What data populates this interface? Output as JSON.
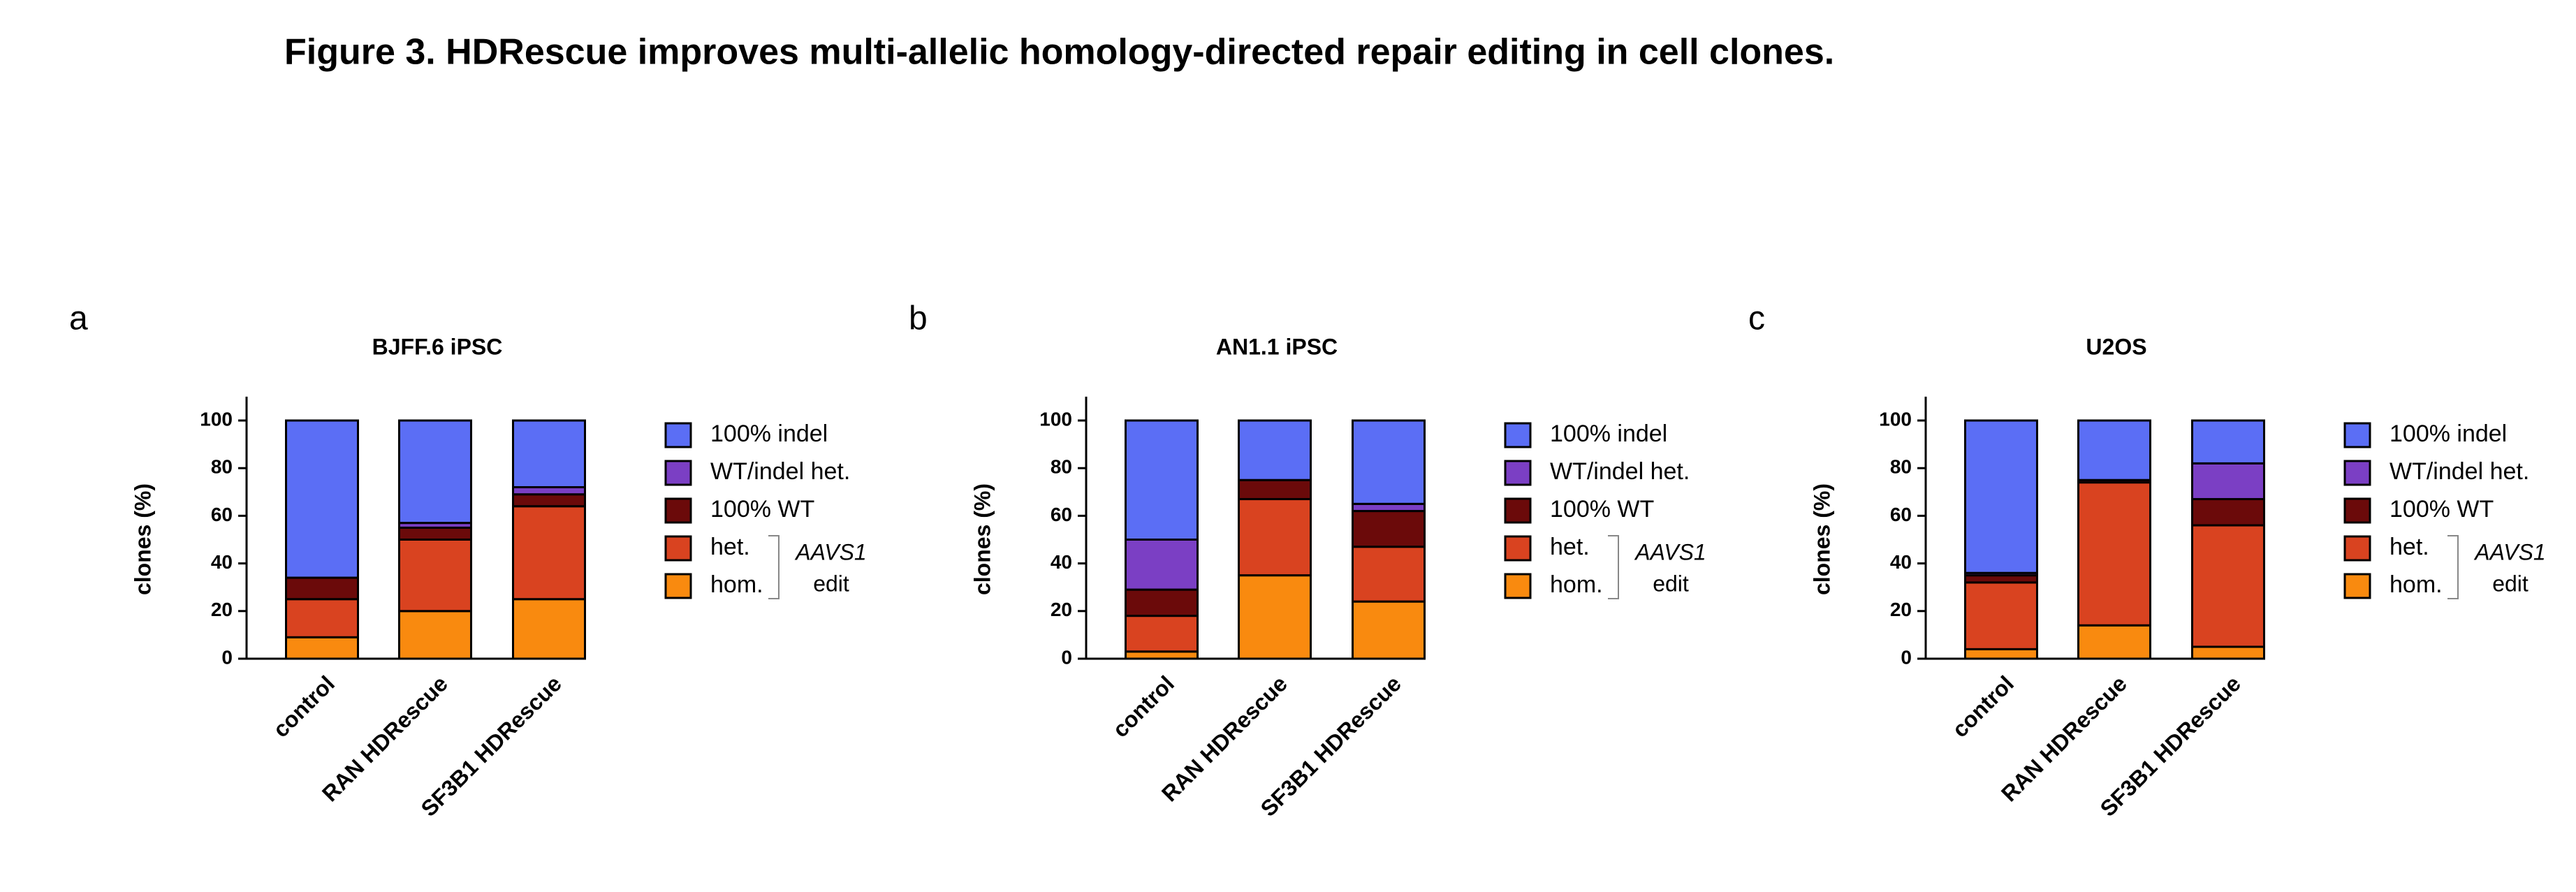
{
  "figure_title": "Figure 3. HDRescue improves multi-allelic homology-directed repair editing in cell clones.",
  "chart_data": [
    {
      "type": "stacked-bar",
      "panel": "a",
      "title": "BJFF.6 iPSC",
      "y_label": "clones (%)",
      "categories": [
        "control",
        "RAN HDRescue",
        "SF3B1 HDRescue"
      ],
      "series": [
        {
          "name": "100% indel",
          "color": "#5b6ef5",
          "values": [
            66,
            43,
            28
          ]
        },
        {
          "name": "WT/indel het.",
          "color": "#7b3fc4",
          "values": [
            0,
            2,
            3
          ]
        },
        {
          "name": "100% WT",
          "color": "#6b0a0a",
          "values": [
            9,
            5,
            5
          ]
        },
        {
          "name": "het.",
          "color": "#d94320",
          "values": [
            16,
            30,
            39
          ]
        },
        {
          "name": "hom.",
          "color": "#f98a0f",
          "values": [
            9,
            20,
            25
          ]
        }
      ],
      "bracket_label": [
        "AAVS1",
        "edit"
      ],
      "ylim": [
        0,
        110
      ],
      "yticks": [
        0,
        20,
        40,
        60,
        80,
        100
      ]
    },
    {
      "type": "stacked-bar",
      "panel": "b",
      "title": "AN1.1 iPSC",
      "y_label": "clones (%)",
      "categories": [
        "control",
        "RAN HDRescue",
        "SF3B1 HDRescue"
      ],
      "series": [
        {
          "name": "100% indel",
          "color": "#5b6ef5",
          "values": [
            50,
            25,
            35
          ]
        },
        {
          "name": "WT/indel het.",
          "color": "#7b3fc4",
          "values": [
            21,
            0,
            3
          ]
        },
        {
          "name": "100% WT",
          "color": "#6b0a0a",
          "values": [
            11,
            8,
            15
          ]
        },
        {
          "name": "het.",
          "color": "#d94320",
          "values": [
            15,
            32,
            23
          ]
        },
        {
          "name": "hom.",
          "color": "#f98a0f",
          "values": [
            3,
            35,
            24
          ]
        }
      ],
      "bracket_label": [
        "AAVS1",
        "edit"
      ],
      "ylim": [
        0,
        110
      ],
      "yticks": [
        0,
        20,
        40,
        60,
        80,
        100
      ]
    },
    {
      "type": "stacked-bar",
      "panel": "c",
      "title": "U2OS",
      "y_label": "clones (%)",
      "categories": [
        "control",
        "RAN HDRescue",
        "SF3B1 HDRescue"
      ],
      "series": [
        {
          "name": "100% indel",
          "color": "#5b6ef5",
          "values": [
            64,
            25,
            18
          ]
        },
        {
          "name": "WT/indel het.",
          "color": "#7b3fc4",
          "values": [
            1,
            0,
            15
          ]
        },
        {
          "name": "100% WT",
          "color": "#6b0a0a",
          "values": [
            3,
            1,
            11
          ]
        },
        {
          "name": "het.",
          "color": "#d94320",
          "values": [
            28,
            60,
            51
          ]
        },
        {
          "name": "hom.",
          "color": "#f98a0f",
          "values": [
            4,
            14,
            5
          ]
        }
      ],
      "bracket_label": [
        "AAVS1",
        "edit"
      ],
      "ylim": [
        0,
        110
      ],
      "yticks": [
        0,
        20,
        40,
        60,
        80,
        100
      ]
    }
  ]
}
